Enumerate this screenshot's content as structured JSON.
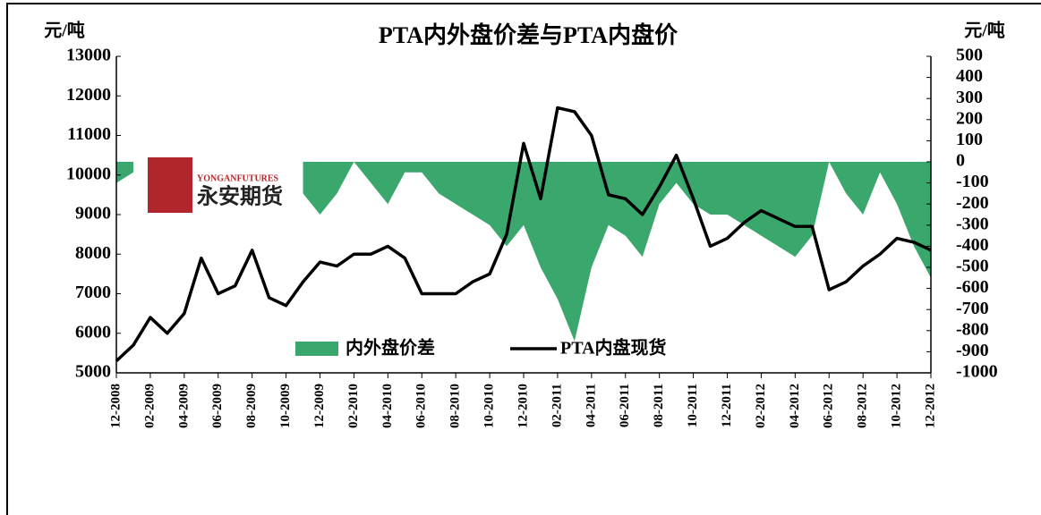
{
  "chart_data": {
    "type": "line",
    "title": "PTA内外盘价差与PTA内盘价",
    "ylabel": "元/吨",
    "y2label": "元/吨",
    "annotations": [
      "YONGANFUTURES",
      "永安期货"
    ],
    "x": [
      "12-2008",
      "01-2009",
      "02-2009",
      "03-2009",
      "04-2009",
      "05-2009",
      "06-2009",
      "07-2009",
      "08-2009",
      "09-2009",
      "10-2009",
      "11-2009",
      "12-2009",
      "01-2010",
      "02-2010",
      "03-2010",
      "04-2010",
      "05-2010",
      "06-2010",
      "07-2010",
      "08-2010",
      "09-2010",
      "10-2010",
      "11-2010",
      "12-2010",
      "01-2011",
      "02-2011",
      "03-2011",
      "04-2011",
      "05-2011",
      "06-2011",
      "07-2011",
      "08-2011",
      "09-2011",
      "10-2011",
      "11-2011",
      "12-2011",
      "01-2012",
      "02-2012",
      "03-2012",
      "04-2012",
      "05-2012",
      "06-2012",
      "07-2012",
      "08-2012",
      "09-2012",
      "10-2012",
      "11-2012",
      "12-2012"
    ],
    "xticks": [
      "12-2008",
      "02-2009",
      "04-2009",
      "06-2009",
      "08-2009",
      "10-2009",
      "12-2009",
      "02-2010",
      "04-2010",
      "06-2010",
      "08-2010",
      "10-2010",
      "12-2010",
      "02-2011",
      "04-2011",
      "06-2011",
      "08-2011",
      "10-2011",
      "12-2011",
      "02-2012",
      "04-2012",
      "06-2012",
      "08-2012",
      "10-2012",
      "12-2012"
    ],
    "series": [
      {
        "name": "内外盘价差",
        "color": "#3aa76d",
        "type": "area",
        "axis": "y2",
        "values": [
          -100,
          -50,
          null,
          null,
          null,
          null,
          null,
          null,
          null,
          null,
          null,
          -150,
          -250,
          -150,
          0,
          -100,
          -200,
          -50,
          -50,
          -150,
          -200,
          -250,
          -300,
          -400,
          -300,
          -500,
          -650,
          -850,
          -500,
          -300,
          -350,
          -450,
          -200,
          -100,
          -200,
          -250,
          -250,
          -300,
          -350,
          -400,
          -450,
          -350,
          0,
          -150,
          -250,
          -50,
          -200,
          -400,
          -550
        ]
      },
      {
        "name": "PTA内盘现货",
        "color": "#000000",
        "type": "line",
        "values": [
          5300,
          5700,
          6400,
          6000,
          6500,
          7900,
          7000,
          7200,
          8100,
          6900,
          6700,
          7300,
          7800,
          7700,
          8000,
          8000,
          8200,
          7900,
          7000,
          7000,
          7000,
          7300,
          7500,
          8500,
          10800,
          9400,
          11700,
          11600,
          11000,
          9500,
          9400,
          9000,
          9700,
          10500,
          9400,
          8200,
          8400,
          8800,
          9100,
          8900,
          8700,
          8700,
          7100,
          7300,
          7700,
          8000,
          8400,
          8300,
          8100
        ]
      }
    ],
    "ylim": [
      5000,
      13000
    ],
    "yticks": [
      5000,
      6000,
      7000,
      8000,
      9000,
      10000,
      11000,
      12000,
      13000
    ],
    "y2lim": [
      -1000,
      500
    ],
    "y2ticks": [
      -1000,
      -900,
      -800,
      -700,
      -600,
      -500,
      -400,
      -300,
      -200,
      -100,
      0,
      100,
      200,
      300,
      400,
      500
    ]
  }
}
